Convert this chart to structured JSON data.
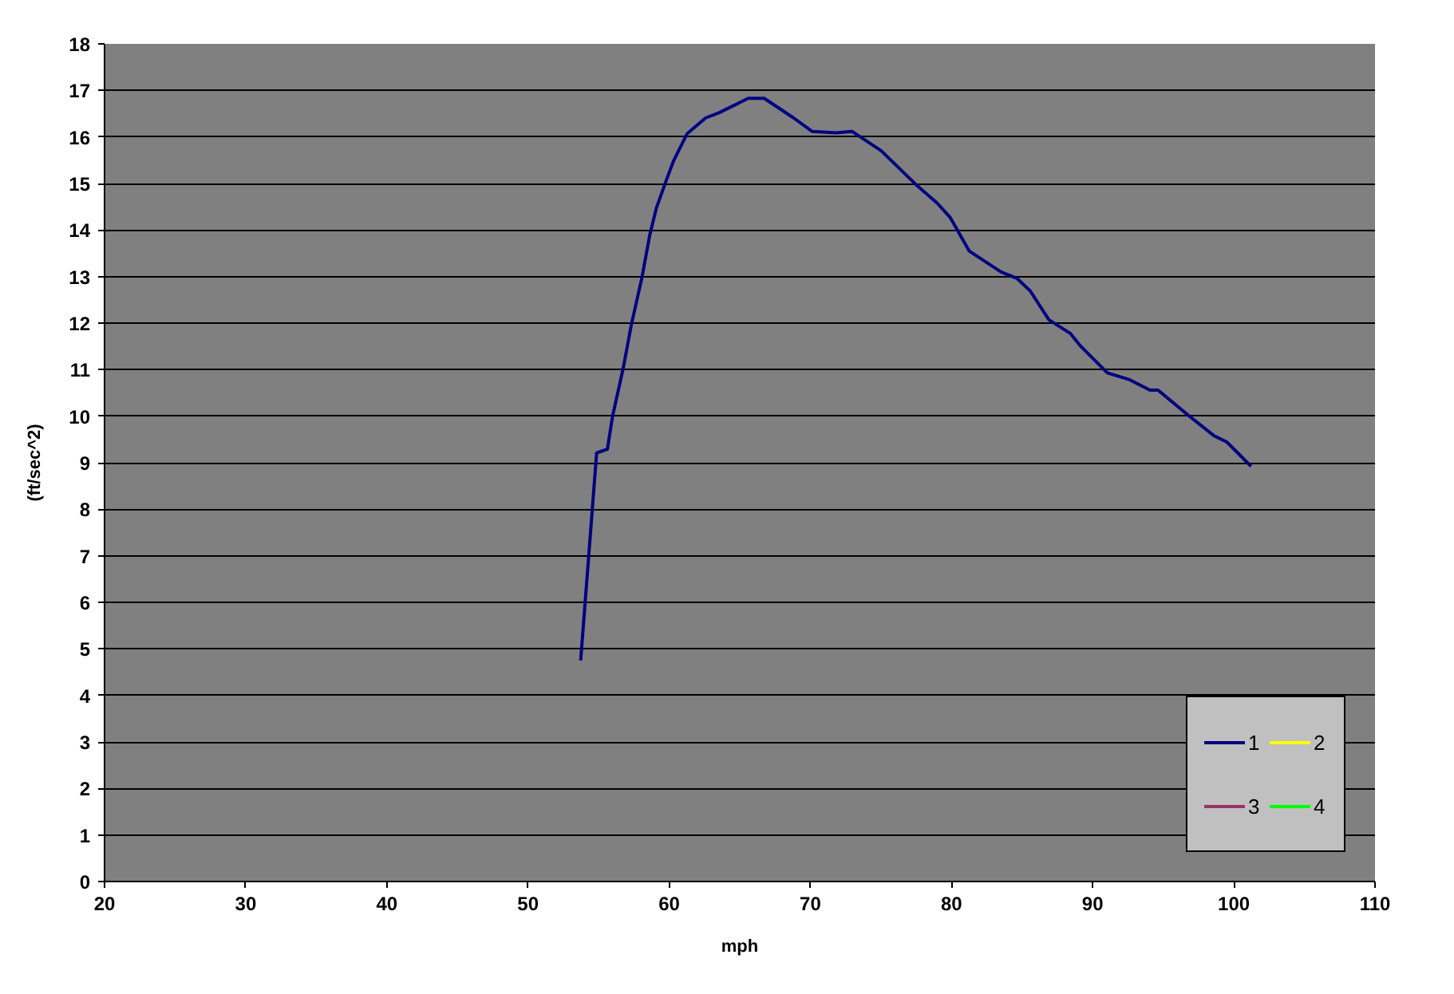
{
  "chart_data": {
    "type": "line",
    "xlabel": "mph",
    "ylabel": "(ft/sec^2)",
    "xlim": [
      20,
      110
    ],
    "ylim": [
      0,
      18
    ],
    "xticks": [
      20,
      30,
      40,
      50,
      60,
      70,
      80,
      90,
      100,
      110
    ],
    "yticks": [
      0,
      1,
      2,
      3,
      4,
      5,
      6,
      7,
      8,
      9,
      10,
      11,
      12,
      13,
      14,
      15,
      16,
      17,
      18
    ],
    "grid": "y",
    "legend": "bottom right",
    "series": [
      {
        "name": "1",
        "color": "#000080",
        "x": [
          53.73,
          54.86,
          55.62,
          55.99,
          56.75,
          57.31,
          58.07,
          58.63,
          59.09,
          59.76,
          60.33,
          61.27,
          62.59,
          63.53,
          65.6,
          66.73,
          68.81,
          70.12,
          71.82,
          72.95,
          75.03,
          77.47,
          78.98,
          79.93,
          81.25,
          83.51,
          84.64,
          85.58,
          86.9,
          88.41,
          89.16,
          91.04,
          92.56,
          94.06,
          94.63,
          96.89,
          98.59,
          99.52,
          100.47,
          101.22
        ],
        "values": [
          4.75,
          9.21,
          9.29,
          10.0,
          11.04,
          11.95,
          12.98,
          13.9,
          14.47,
          15.04,
          15.5,
          16.07,
          16.41,
          16.52,
          16.83,
          16.83,
          16.41,
          16.12,
          16.09,
          16.12,
          15.7,
          14.98,
          14.58,
          14.26,
          13.55,
          13.1,
          12.96,
          12.69,
          12.07,
          11.78,
          11.5,
          10.93,
          10.79,
          10.56,
          10.56,
          9.99,
          9.58,
          9.44,
          9.15,
          8.92
        ]
      },
      {
        "name": "2",
        "color": "#ffff00"
      },
      {
        "name": "3",
        "color": "#993366"
      },
      {
        "name": "4",
        "color": "#00ff00"
      }
    ]
  }
}
